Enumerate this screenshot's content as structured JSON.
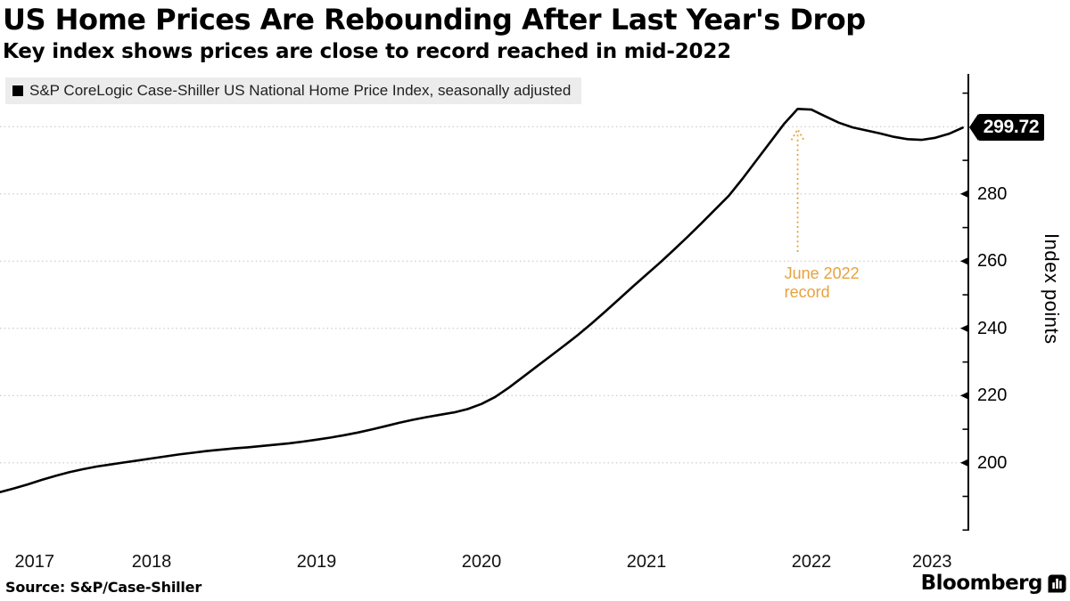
{
  "header": {
    "title": "US Home Prices Are Rebounding After Last Year's Drop",
    "subtitle": "Key index shows prices are close to record reached in mid-2022"
  },
  "legend": {
    "label": "S&P CoreLogic Case-Shiller US National Home Price Index, seasonally adjusted"
  },
  "chart_data": {
    "type": "line",
    "title": "US Home Prices Are Rebounding After Last Year's Drop",
    "subtitle": "Key index shows prices are close to record reached in mid-2022",
    "series_name": "S&P CoreLogic Case-Shiller US National Home Price Index, seasonally adjusted",
    "frequency": "monthly",
    "x_start": "2017-08",
    "x_end": "2023-06",
    "values": [
      191.3,
      192.4,
      193.6,
      194.9,
      196.1,
      197.2,
      198.1,
      198.9,
      199.5,
      200.1,
      200.7,
      201.3,
      201.9,
      202.5,
      203.0,
      203.5,
      203.9,
      204.3,
      204.6,
      205.0,
      205.4,
      205.8,
      206.3,
      206.9,
      207.5,
      208.2,
      209.0,
      209.9,
      210.9,
      211.9,
      212.8,
      213.6,
      214.3,
      215.0,
      216.0,
      217.5,
      219.6,
      222.4,
      225.5,
      228.6,
      231.7,
      234.8,
      238.0,
      241.4,
      245.0,
      248.7,
      252.4,
      256.0,
      259.6,
      263.4,
      267.3,
      271.3,
      275.4,
      279.5,
      284.6,
      290.0,
      295.4,
      300.8,
      305.3,
      305.1,
      303.1,
      301.2,
      299.8,
      298.9,
      298.0,
      297.0,
      296.3,
      296.1,
      296.7,
      297.9,
      299.72
    ],
    "x_tick_labels": [
      "2017",
      "2018",
      "2019",
      "2020",
      "2021",
      "2022",
      "2023"
    ],
    "y_ticks_labeled": [
      200,
      220,
      240,
      260,
      280
    ],
    "y_ticks_minor": [
      180,
      190,
      210,
      230,
      250,
      270,
      290,
      310
    ],
    "y_gridlines": [
      200,
      220,
      240,
      260,
      280,
      300
    ],
    "ylim": [
      178,
      314
    ],
    "ylabel": "Index points",
    "grid": "horizontal-dotted",
    "line_color": "#000000",
    "last_value_label": "299.72",
    "annotation": {
      "text": "June 2022\nrecord",
      "target_date": "2022-06",
      "color": "#e8a13c"
    }
  },
  "footer": {
    "source": "Source: S&P/Case-Shiller",
    "brand": "Bloomberg",
    "brand_icon": "bloomberg-terminal-icon"
  },
  "colors": {
    "accent_orange": "#e8a13c",
    "legend_bg": "#ececec",
    "grid": "#c7c7c7",
    "line": "#000000",
    "badge_bg": "#000000",
    "badge_text": "#ffffff"
  }
}
